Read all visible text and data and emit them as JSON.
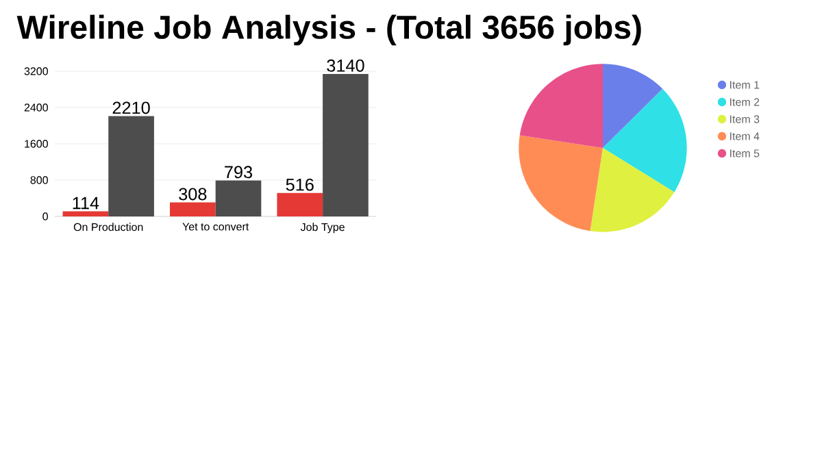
{
  "chart_data": [
    {
      "type": "bar",
      "title": "Wireline Job Analysis - (Total 3656 jobs)",
      "categories": [
        "On Production",
        "Yet to convert",
        "Job Type"
      ],
      "series": [
        {
          "color": "#e53935",
          "values": [
            114,
            308,
            516
          ]
        },
        {
          "color": "#4d4d4d",
          "values": [
            2210,
            793,
            3140
          ]
        }
      ],
      "ylim": [
        0,
        3200
      ],
      "yticks": [
        0,
        800,
        1600,
        2400,
        3200
      ],
      "grid": "y",
      "data_labels": true
    },
    {
      "type": "pie",
      "categories": [
        "Item 1",
        "Item 2",
        "Item 3",
        "Item 4",
        "Item 5"
      ],
      "values": [
        12.6,
        21.2,
        18.6,
        25,
        22.6
      ],
      "colors": [
        "#6b7fea",
        "#2fe0e6",
        "#dff040",
        "#ff8c55",
        "#e8508a"
      ],
      "legend": "right"
    }
  ]
}
